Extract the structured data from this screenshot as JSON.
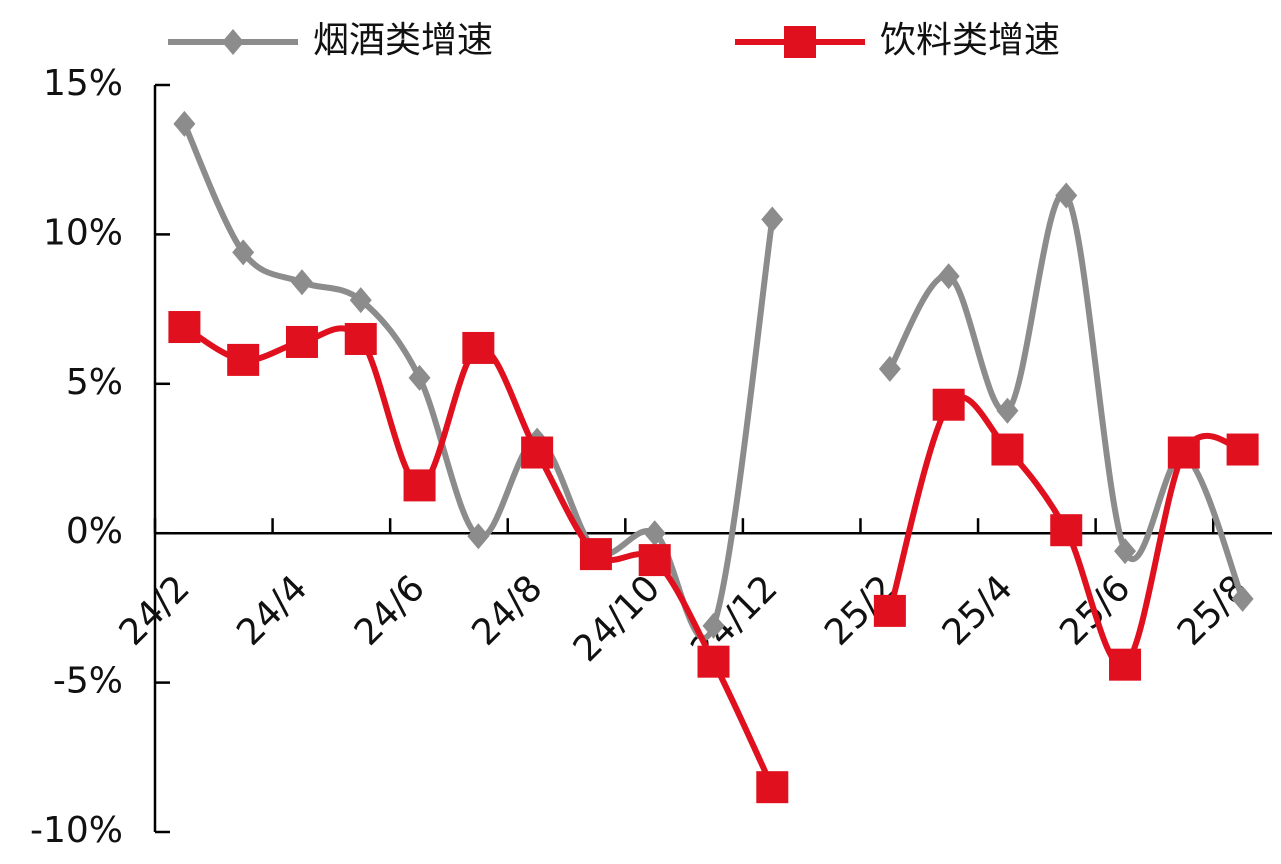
{
  "chart_data": {
    "type": "line",
    "categories": [
      "24/2",
      null,
      "24/4",
      null,
      "24/6",
      null,
      "24/8",
      null,
      "24/10",
      null,
      "24/12",
      null,
      "25/2",
      null,
      "25/4",
      null,
      "25/6",
      null,
      "25/8"
    ],
    "series": [
      {
        "name": "烟酒类增速",
        "color": "#8c8c8c",
        "marker": "diamond",
        "values": [
          13.7,
          9.4,
          8.4,
          7.8,
          5.2,
          -0.1,
          3.1,
          -0.6,
          0,
          -3.1,
          10.5,
          null,
          5.5,
          8.6,
          4.1,
          11.3,
          -0.6,
          2.6,
          -2.2
        ]
      },
      {
        "name": "饮料类增速",
        "color": "#e0101e",
        "marker": "square",
        "values": [
          6.9,
          5.8,
          6.4,
          6.5,
          1.6,
          6.2,
          2.7,
          -0.7,
          -0.9,
          -4.3,
          -8.5,
          null,
          -2.6,
          4.3,
          2.8,
          0.1,
          -4.4,
          2.7,
          2.8
        ]
      }
    ],
    "ylim": [
      -10,
      15
    ],
    "yticks": [
      {
        "value": -10,
        "label": "-10%"
      },
      {
        "value": -5,
        "label": "-5%"
      },
      {
        "value": 0,
        "label": "0%"
      },
      {
        "value": 5,
        "label": "5%"
      },
      {
        "value": 10,
        "label": "10%"
      },
      {
        "value": 15,
        "label": "15%"
      }
    ],
    "smooth": true,
    "legend": "top"
  }
}
